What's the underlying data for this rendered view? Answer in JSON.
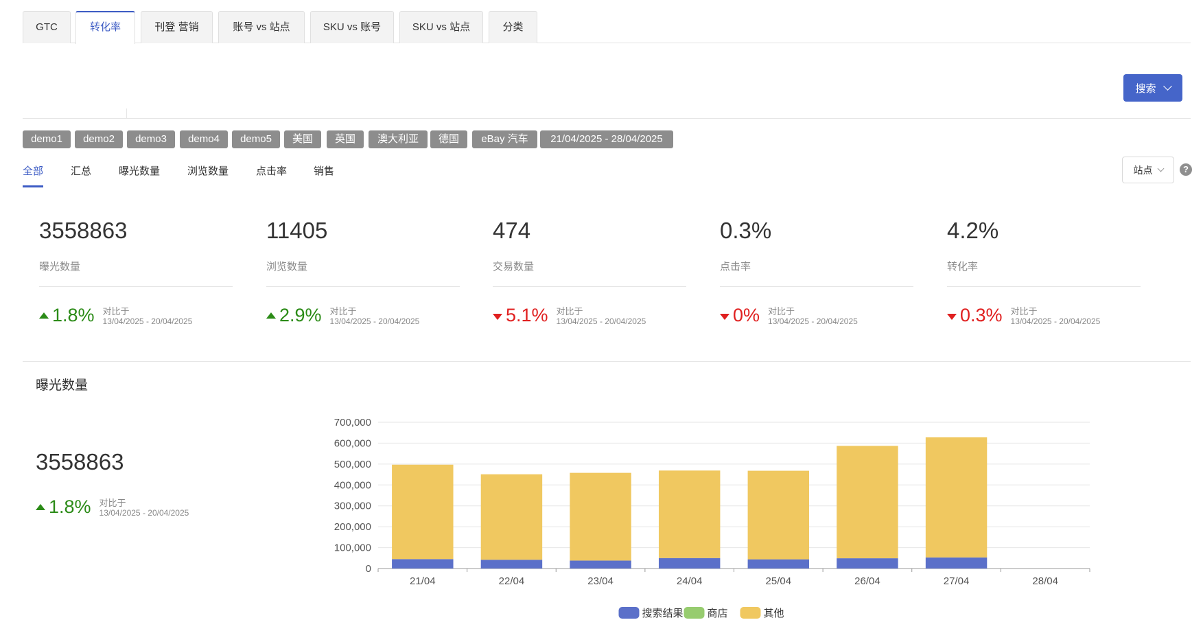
{
  "top_tabs": [
    {
      "label": "GTC",
      "active": false
    },
    {
      "label": "转化率",
      "active": true
    },
    {
      "label": "刊登 营销",
      "active": false
    },
    {
      "label": "账号 vs 站点",
      "active": false
    },
    {
      "label": "SKU vs 账号",
      "active": false
    },
    {
      "label": "SKU vs 站点",
      "active": false
    },
    {
      "label": "分类",
      "active": false
    }
  ],
  "search_button": {
    "label": "搜索"
  },
  "filter_tags": [
    "demo1",
    "demo2",
    "demo3",
    "demo4",
    "demo5",
    "美国",
    "英国",
    "澳大利亚",
    "德国",
    "eBay 汽车",
    "21/04/2025 - 28/04/2025"
  ],
  "sub_tabs": [
    {
      "label": "全部",
      "active": true
    },
    {
      "label": "汇总",
      "active": false
    },
    {
      "label": "曝光数量",
      "active": false
    },
    {
      "label": "浏览数量",
      "active": false
    },
    {
      "label": "点击率",
      "active": false
    },
    {
      "label": "销售",
      "active": false
    }
  ],
  "site_select": {
    "label": "站点"
  },
  "help_icon": "question-icon",
  "metrics": [
    {
      "value": "3558863",
      "label": "曝光数量",
      "change": "1.8%",
      "direction": "up",
      "compare_label": "对比于",
      "compare_range": "13/04/2025 - 20/04/2025"
    },
    {
      "value": "11405",
      "label": "浏览数量",
      "change": "2.9%",
      "direction": "up",
      "compare_label": "对比于",
      "compare_range": "13/04/2025 - 20/04/2025"
    },
    {
      "value": "474",
      "label": "交易数量",
      "change": "5.1%",
      "direction": "down",
      "compare_label": "对比于",
      "compare_range": "13/04/2025 - 20/04/2025"
    },
    {
      "value": "0.3%",
      "label": "点击率",
      "change": "0%",
      "direction": "down",
      "compare_label": "对比于",
      "compare_range": "13/04/2025 - 20/04/2025"
    },
    {
      "value": "4.2%",
      "label": "转化率",
      "change": "0.3%",
      "direction": "down",
      "compare_label": "对比于",
      "compare_range": "13/04/2025 - 20/04/2025"
    }
  ],
  "section": {
    "title": "曝光数量",
    "total": "3558863",
    "change": "1.8%",
    "direction": "up",
    "compare_label": "对比于",
    "compare_range": "13/04/2025 - 20/04/2025"
  },
  "colors": {
    "accent": "#3c5bc4",
    "button": "#4565c9",
    "tag": "#8d8d8d",
    "up": "#2b8b17",
    "down": "#e02020",
    "series_search": "#5b70c9",
    "series_store": "#97cc6f",
    "series_other": "#f0c860"
  },
  "chart_data": {
    "type": "bar",
    "stacked": true,
    "categories": [
      "21/04",
      "22/04",
      "23/04",
      "24/04",
      "25/04",
      "26/04",
      "27/04",
      "28/04"
    ],
    "series": [
      {
        "name": "搜索结果",
        "color": "#5b70c9",
        "values": [
          45000,
          42000,
          38000,
          50000,
          44000,
          49000,
          53000,
          0
        ]
      },
      {
        "name": "商店",
        "color": "#97cc6f",
        "values": [
          0,
          0,
          0,
          0,
          0,
          0,
          0,
          0
        ]
      },
      {
        "name": "其他",
        "color": "#f0c860",
        "values": [
          452000,
          409000,
          420000,
          419000,
          424000,
          538000,
          575000,
          0
        ]
      }
    ],
    "ylim": [
      0,
      700000
    ],
    "yticks": [
      "0",
      "100,000",
      "200,000",
      "300,000",
      "400,000",
      "500,000",
      "600,000",
      "700,000"
    ],
    "grid": true,
    "legend_position": "bottom"
  }
}
